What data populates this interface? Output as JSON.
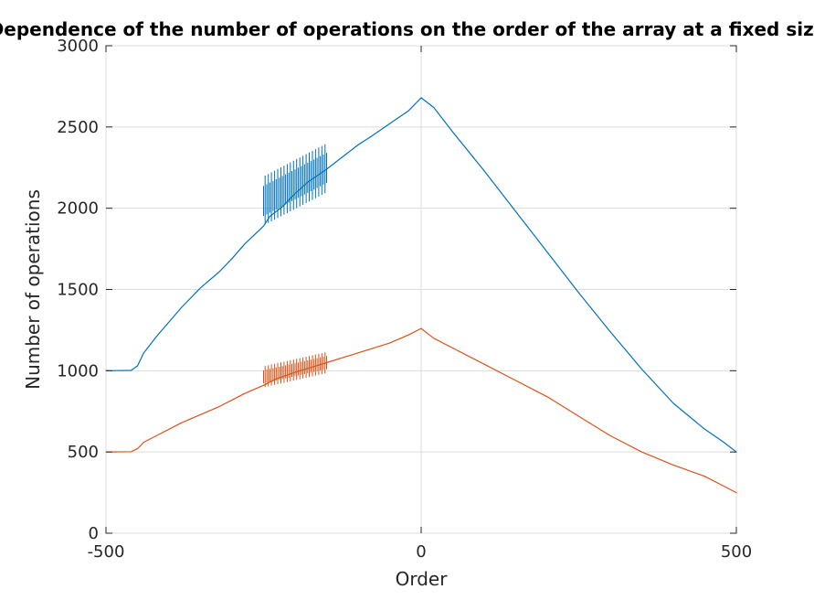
{
  "chart_data": {
    "type": "line",
    "title": "Dependence of the number of operations on the order of the array at a fixed size",
    "xlabel": "Order",
    "ylabel": "Number of operations",
    "xlim": [
      -500,
      500
    ],
    "ylim": [
      0,
      3000
    ],
    "xticks": [
      -500,
      0,
      500
    ],
    "yticks": [
      0,
      500,
      1000,
      1500,
      2000,
      2500,
      3000
    ],
    "grid": true,
    "legend": "none",
    "series": [
      {
        "color": "#0072BD",
        "points": [
          [
            -500,
            1000
          ],
          [
            -460,
            1002
          ],
          [
            -450,
            1030
          ],
          [
            -440,
            1110
          ],
          [
            -420,
            1210
          ],
          [
            -400,
            1300
          ],
          [
            -380,
            1390
          ],
          [
            -350,
            1510
          ],
          [
            -320,
            1610
          ],
          [
            -300,
            1690
          ],
          [
            -280,
            1780
          ],
          [
            -250,
            1890
          ],
          [
            -240,
            1950
          ],
          [
            -220,
            2010
          ],
          [
            -200,
            2090
          ],
          [
            -180,
            2160
          ],
          [
            -150,
            2240
          ],
          [
            -120,
            2330
          ],
          [
            -100,
            2390
          ],
          [
            -80,
            2440
          ],
          [
            -50,
            2520
          ],
          [
            -20,
            2600
          ],
          [
            0,
            2680
          ],
          [
            20,
            2620
          ],
          [
            50,
            2470
          ],
          [
            100,
            2230
          ],
          [
            150,
            1980
          ],
          [
            200,
            1730
          ],
          [
            250,
            1480
          ],
          [
            300,
            1240
          ],
          [
            350,
            1010
          ],
          [
            400,
            800
          ],
          [
            450,
            640
          ],
          [
            480,
            560
          ],
          [
            500,
            500
          ]
        ],
        "noisy_band": {
          "x_range": [
            -250,
            -150
          ],
          "range": [
            1900,
            2480
          ]
        }
      },
      {
        "color": "#D95319",
        "points": [
          [
            -500,
            500
          ],
          [
            -460,
            502
          ],
          [
            -450,
            520
          ],
          [
            -440,
            560
          ],
          [
            -420,
            600
          ],
          [
            -400,
            640
          ],
          [
            -380,
            680
          ],
          [
            -350,
            730
          ],
          [
            -320,
            780
          ],
          [
            -300,
            820
          ],
          [
            -280,
            860
          ],
          [
            -250,
            910
          ],
          [
            -230,
            950
          ],
          [
            -200,
            990
          ],
          [
            -150,
            1050
          ],
          [
            -100,
            1110
          ],
          [
            -50,
            1170
          ],
          [
            -20,
            1220
          ],
          [
            0,
            1260
          ],
          [
            20,
            1200
          ],
          [
            50,
            1140
          ],
          [
            100,
            1040
          ],
          [
            150,
            940
          ],
          [
            200,
            840
          ],
          [
            250,
            720
          ],
          [
            300,
            600
          ],
          [
            350,
            500
          ],
          [
            400,
            420
          ],
          [
            450,
            350
          ],
          [
            480,
            290
          ],
          [
            500,
            250
          ]
        ],
        "noisy_band": {
          "x_range": [
            -250,
            -150
          ],
          "range": [
            900,
            1150
          ]
        }
      }
    ]
  }
}
